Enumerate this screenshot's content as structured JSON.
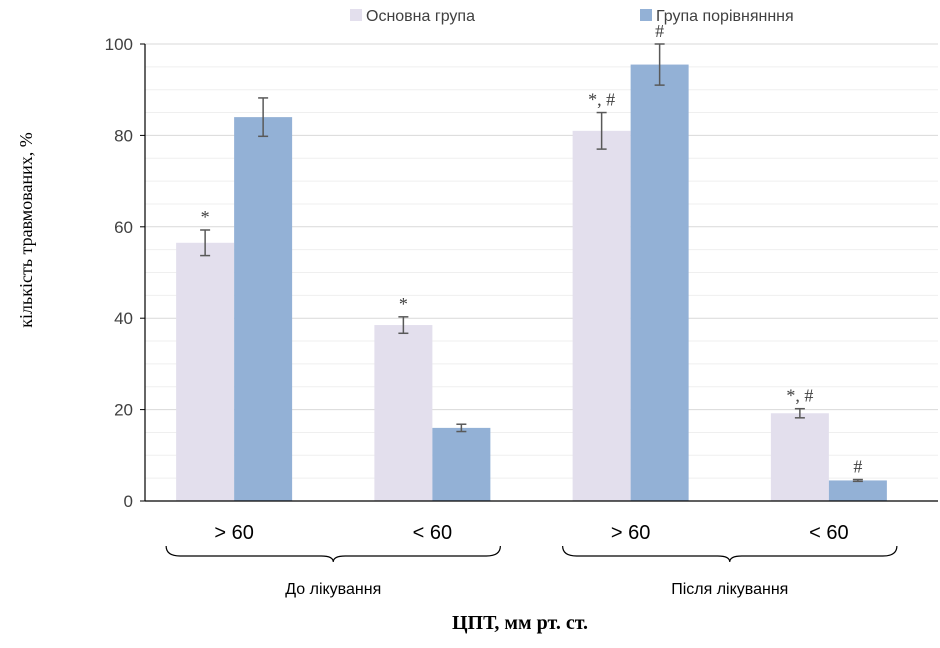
{
  "chart_data": {
    "type": "bar",
    "xlabel": "ЦПТ, мм рт. ст.",
    "ylabel": "кількість травмованих, %",
    "ylim": [
      0,
      100
    ],
    "yticks": [
      0,
      20,
      40,
      60,
      80,
      100
    ],
    "grid": true,
    "legend_position": "top",
    "categories": [
      "> 60",
      "< 60",
      "> 60",
      "< 60"
    ],
    "groups": [
      {
        "label": "До лікування",
        "categories": [
          0,
          1
        ]
      },
      {
        "label": "Після лікування",
        "categories": [
          2,
          3
        ]
      }
    ],
    "series": [
      {
        "name": "Основна група",
        "color": "#e3dfed",
        "values": [
          56.5,
          38.5,
          81,
          19.2
        ],
        "errors": [
          2.8,
          1.8,
          4,
          1
        ],
        "annotations": [
          "*",
          "*",
          "*, #",
          "*, #"
        ]
      },
      {
        "name": "Група порівнянння",
        "color": "#93b1d6",
        "values": [
          84,
          16,
          95.5,
          4.5
        ],
        "errors": [
          4.2,
          0.8,
          4.5,
          0.2
        ],
        "annotations": [
          "",
          "",
          "#",
          "#"
        ]
      }
    ]
  }
}
